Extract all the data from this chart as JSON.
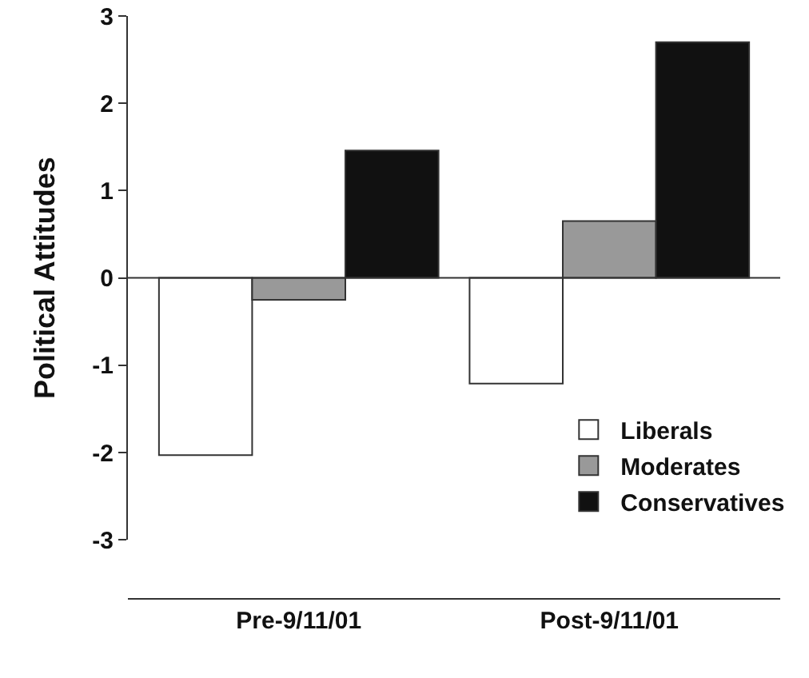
{
  "chart_data": {
    "type": "bar",
    "ylabel": "Political Attitudes",
    "categories": [
      "Pre-9/11/01",
      "Post-9/11/01"
    ],
    "series": [
      {
        "name": "Liberals",
        "color": "#ffffff",
        "values": [
          -2.03,
          -1.21
        ]
      },
      {
        "name": "Moderates",
        "color": "#999999",
        "values": [
          -0.25,
          0.65
        ]
      },
      {
        "name": "Conservatives",
        "color": "#111111",
        "values": [
          1.46,
          2.7
        ]
      }
    ],
    "ref_lines": [
      {
        "axis": "y",
        "value": 0,
        "color": "#333333"
      }
    ],
    "ylim": [
      -3,
      3
    ],
    "yticks": [
      -3,
      -2,
      -1,
      0,
      1,
      2,
      3
    ],
    "grid": false,
    "legend": "bottom right"
  }
}
